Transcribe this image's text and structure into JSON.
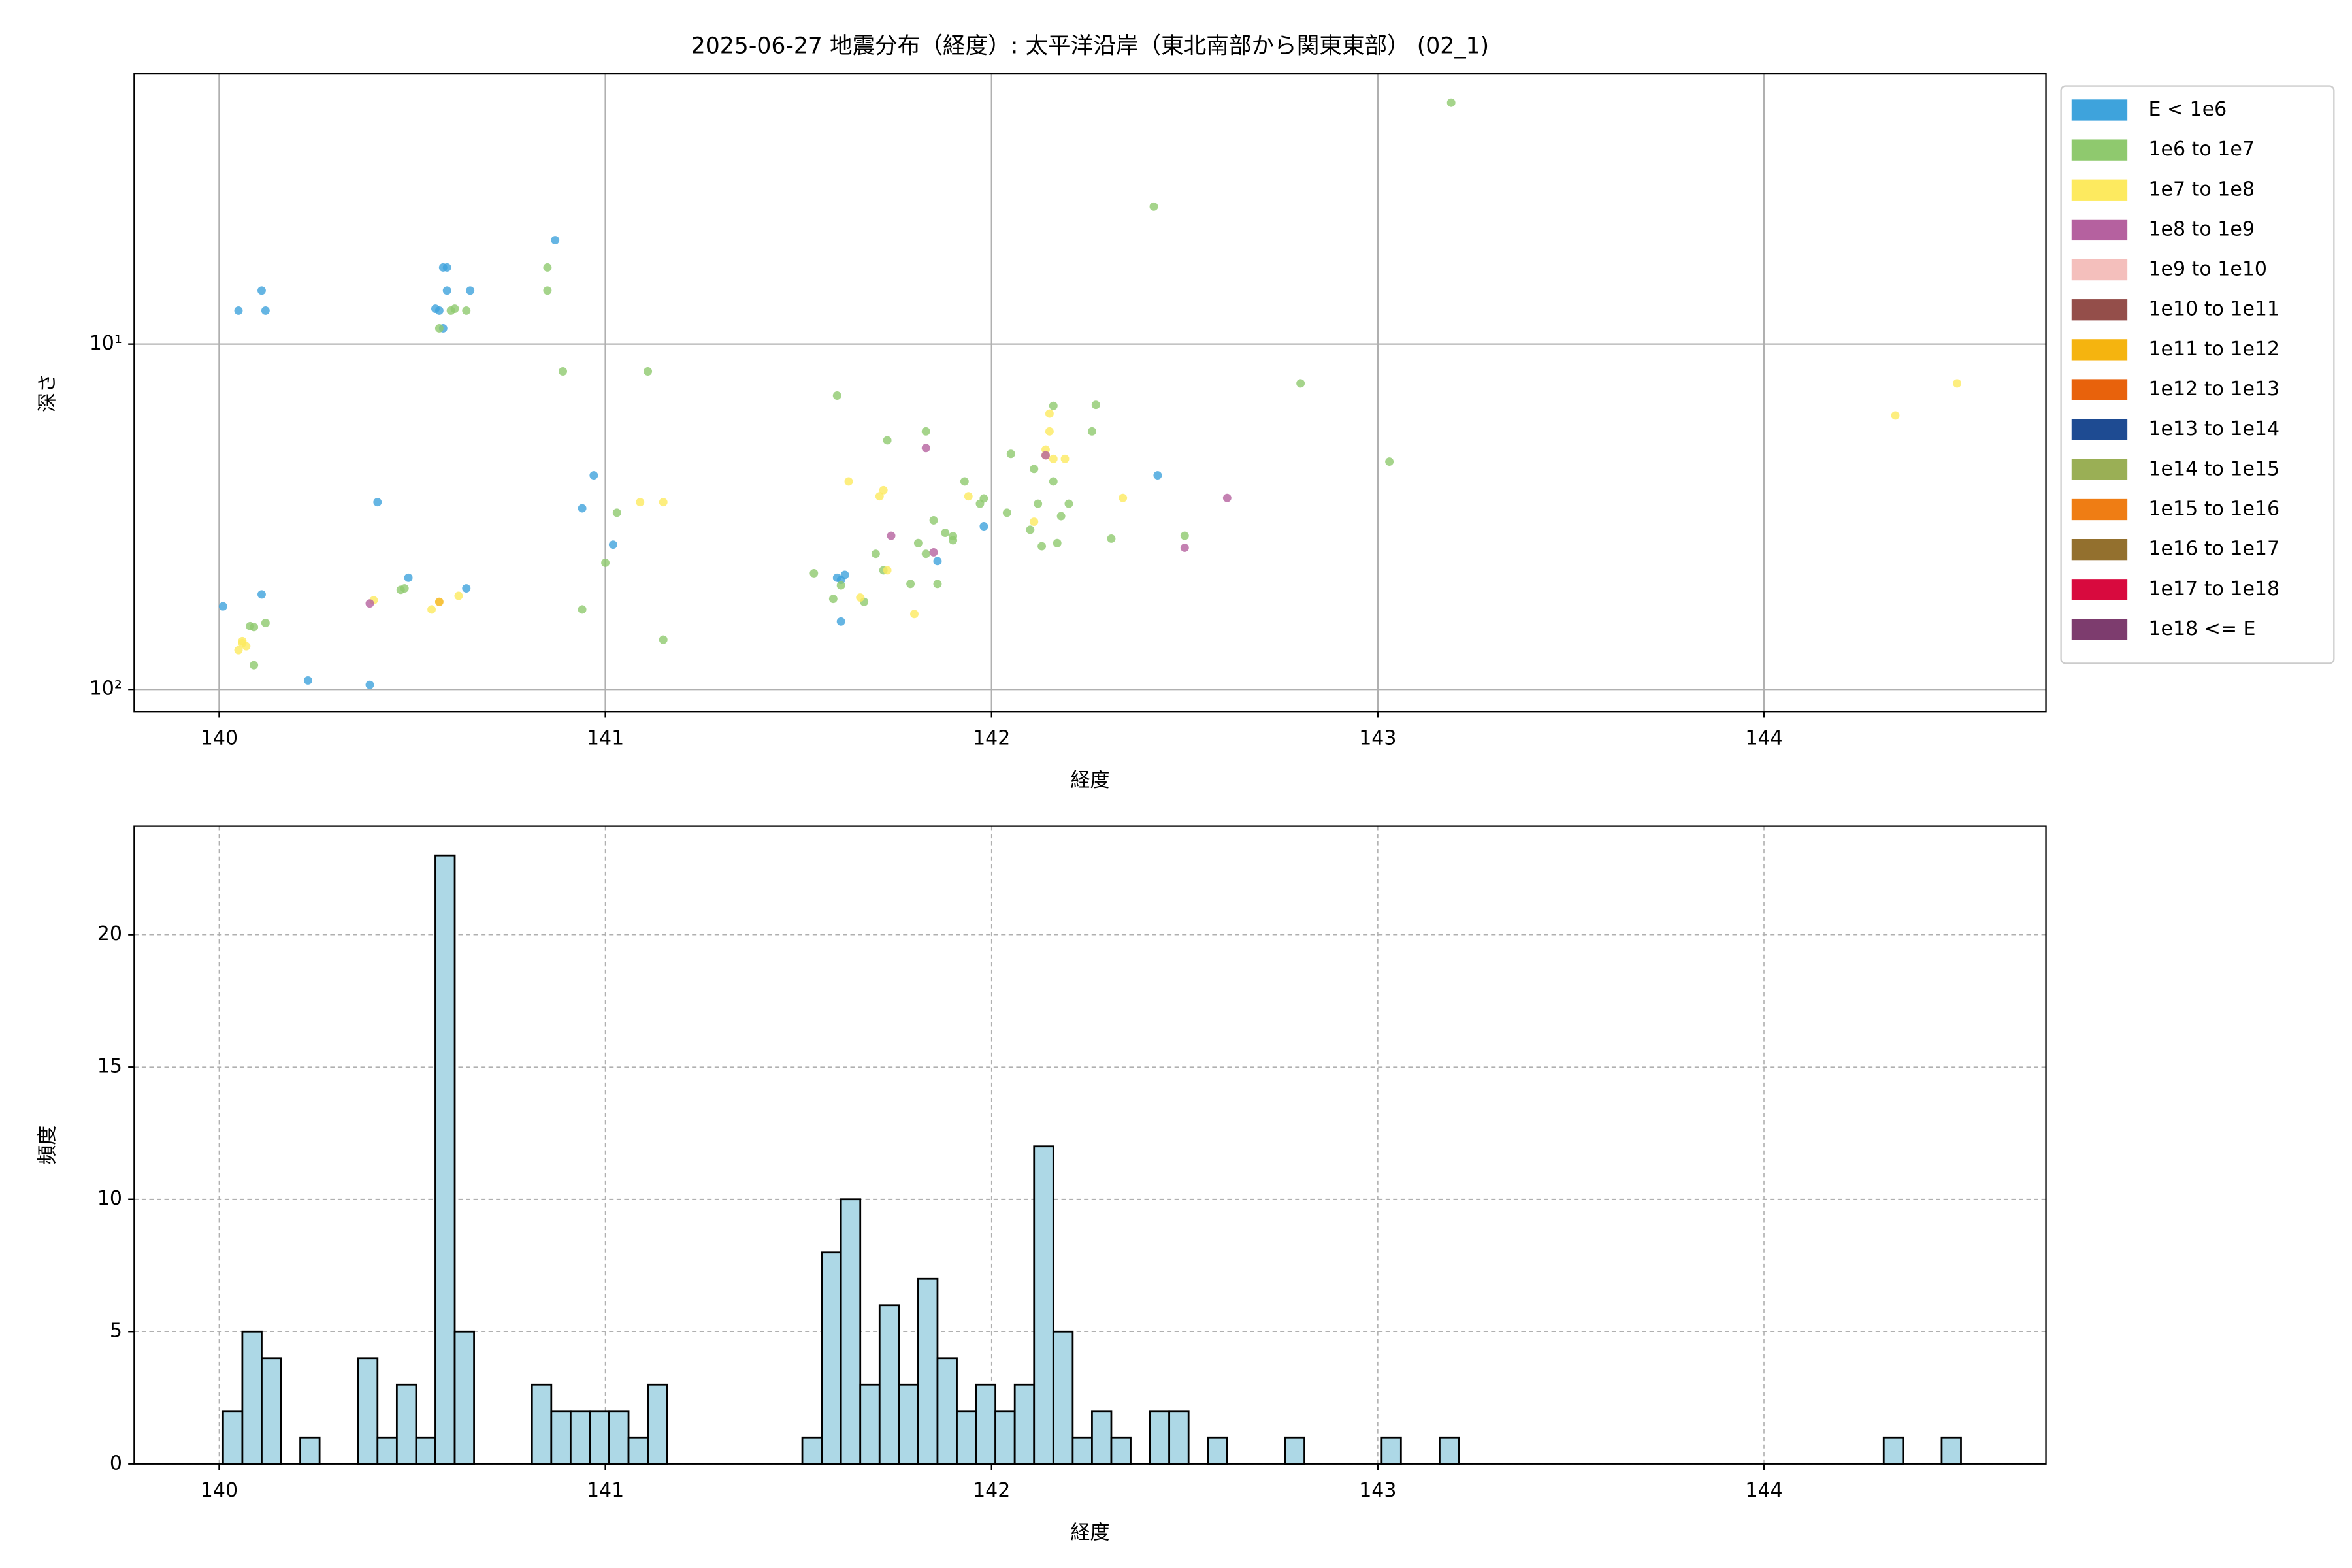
{
  "chart_data": [
    {
      "type": "scatter",
      "title": "2025-06-27 地震分布（経度）: 太平洋沿岸（東北南部から関東東部） (02_1)",
      "x_label": "経度",
      "y_label": "深さ",
      "xlim": [
        139.78,
        144.73
      ],
      "xticks": [
        140,
        141,
        142,
        143,
        144
      ],
      "ylim": [
        116,
        1.65
      ],
      "yscale": "log",
      "yticks": [
        {
          "value": 10,
          "label": "10¹"
        },
        {
          "value": 100,
          "label": "10²"
        }
      ],
      "grid": true,
      "legend": "outside-right",
      "series": [
        {
          "name": "E < 1e6",
          "color": "#3ea3dc",
          "x": [
            140.01,
            140.05,
            140.11,
            140.12,
            140.11,
            140.23,
            140.39,
            140.41,
            140.49,
            140.56,
            140.57,
            140.58,
            140.58,
            140.59,
            140.59,
            140.64,
            140.65,
            140.87,
            140.94,
            140.97,
            141.02,
            141.61,
            141.6,
            141.62,
            141.61,
            141.86,
            141.98,
            142.43
          ],
          "values": [
            57.5,
            8.0,
            7.0,
            8.0,
            53.1,
            94.2,
            97.0,
            28.7,
            47.5,
            7.9,
            8.0,
            9.0,
            6.0,
            6.0,
            7.0,
            51.0,
            7.0,
            5.0,
            29.9,
            24.0,
            38.1,
            63.6,
            47.5,
            46.6,
            48.2,
            42.5,
            33.7,
            24.0
          ]
        },
        {
          "name": "1e6 to 1e7",
          "color": "#8fc96e",
          "x": [
            140.08,
            140.09,
            140.09,
            140.12,
            140.47,
            140.48,
            140.57,
            140.6,
            140.61,
            140.64,
            140.85,
            140.85,
            140.89,
            140.94,
            141.0,
            141.03,
            141.11,
            141.15,
            141.54,
            141.6,
            141.59,
            141.61,
            141.67,
            141.7,
            141.72,
            141.73,
            141.79,
            141.81,
            141.83,
            141.83,
            141.85,
            141.86,
            141.88,
            141.9,
            141.9,
            141.93,
            141.97,
            141.98,
            142.04,
            142.05,
            142.1,
            142.11,
            142.12,
            142.13,
            142.16,
            142.16,
            142.17,
            142.18,
            142.2,
            142.26,
            142.27,
            142.31,
            142.42,
            142.5,
            142.8,
            143.03,
            143.19
          ],
          "values": [
            65.6,
            66.0,
            85.1,
            64.2,
            51.5,
            51.0,
            9.0,
            8.0,
            7.9,
            8.0,
            6.0,
            7.0,
            12.0,
            58.7,
            43.0,
            30.8,
            12.0,
            71.8,
            46.1,
            14.1,
            54.7,
            50.0,
            55.8,
            40.5,
            45.2,
            19.0,
            49.5,
            37.7,
            17.9,
            40.5,
            32.4,
            49.5,
            35.2,
            37.0,
            36.0,
            25.0,
            29.0,
            28.0,
            30.8,
            20.8,
            34.5,
            23.0,
            29.0,
            38.5,
            15.1,
            25.0,
            37.7,
            31.5,
            29.0,
            17.9,
            15.0,
            36.6,
            4.0,
            35.9,
            13.0,
            21.9,
            2.0
          ]
        },
        {
          "name": "1e7 to 1e8",
          "color": "#fdea5f",
          "x": [
            140.06,
            140.07,
            140.06,
            140.05,
            140.4,
            140.55,
            140.62,
            141.09,
            141.15,
            141.63,
            141.66,
            141.71,
            141.72,
            141.73,
            141.8,
            141.94,
            142.11,
            142.14,
            142.14,
            142.15,
            142.15,
            142.16,
            142.19,
            142.34,
            144.34,
            144.5
          ],
          "values": [
            72.5,
            75.0,
            73.5,
            77.0,
            55.2,
            58.7,
            53.6,
            28.7,
            28.7,
            25.0,
            54.2,
            27.6,
            26.5,
            45.2,
            60.5,
            27.6,
            32.7,
            20.2,
            21.0,
            15.9,
            17.9,
            21.5,
            21.5,
            27.9,
            16.1,
            13.0
          ]
        },
        {
          "name": "1e8 to 1e9",
          "color": "#b5619f",
          "x": [
            140.39,
            141.74,
            141.83,
            141.85,
            142.14,
            142.5,
            142.61
          ],
          "values": [
            56.4,
            35.9,
            20.0,
            40.1,
            21.0,
            38.9,
            27.9
          ]
        },
        {
          "name": "1e9 to 1e10",
          "color": "#f4bfbc",
          "x": [],
          "values": []
        },
        {
          "name": "1e10 to 1e11",
          "color": "#944e4a",
          "x": [],
          "values": []
        },
        {
          "name": "1e11 to 1e12",
          "color": "#f5b40f",
          "x": [
            140.57
          ],
          "values": [
            55.8
          ]
        },
        {
          "name": "1e12 to 1e13",
          "color": "#e8620c",
          "x": [],
          "values": []
        },
        {
          "name": "1e13 to 1e14",
          "color": "#1e4b92",
          "x": [],
          "values": []
        },
        {
          "name": "1e14 to 1e15",
          "color": "#9aaf55",
          "x": [],
          "values": []
        },
        {
          "name": "1e15 to 1e16",
          "color": "#ef7d14",
          "x": [],
          "values": []
        },
        {
          "name": "1e16 to 1e17",
          "color": "#93702e",
          "x": [],
          "values": []
        },
        {
          "name": "1e17 to 1e18",
          "color": "#d80a3e",
          "x": [],
          "values": []
        },
        {
          "name": "1e18 <= E",
          "color": "#7d3c6e",
          "x": [],
          "values": []
        }
      ]
    },
    {
      "type": "histogram",
      "x_label": "経度",
      "y_label": "頻度",
      "xlim": [
        139.78,
        144.73
      ],
      "xticks": [
        140,
        141,
        142,
        143,
        144
      ],
      "ylim": [
        0,
        24.1
      ],
      "yticks": [
        0,
        5,
        10,
        15,
        20
      ],
      "grid": "dashed",
      "color": "#add8e6",
      "edgecolor": "#000000",
      "bins": [
        140.01,
        140.06,
        140.11,
        140.16,
        140.21,
        140.26,
        140.31,
        140.36,
        140.41,
        140.46,
        140.51,
        140.56,
        140.61,
        140.66,
        140.71,
        140.76,
        140.81,
        140.86,
        140.91,
        140.96,
        141.01,
        141.06,
        141.11,
        141.16,
        141.21,
        141.26,
        141.31,
        141.36,
        141.41,
        141.46,
        141.51,
        141.56,
        141.61,
        141.66,
        141.71,
        141.76,
        141.81,
        141.86,
        141.91,
        141.96,
        142.01,
        142.06,
        142.11,
        142.16,
        142.21,
        142.26,
        142.31,
        142.36,
        142.41,
        142.46,
        142.51,
        142.56,
        142.61,
        142.66,
        142.71,
        142.76,
        142.81,
        142.86,
        142.91,
        142.96,
        143.01,
        143.06,
        143.11,
        143.16,
        143.21,
        143.26,
        143.31,
        143.36,
        143.41,
        143.46,
        143.51,
        143.56,
        143.61,
        143.66,
        143.71,
        143.76,
        143.81,
        143.86,
        143.91,
        143.96,
        144.01,
        144.06,
        144.11,
        144.16,
        144.21,
        144.26,
        144.31,
        144.36,
        144.41,
        144.46,
        144.51
      ],
      "values": [
        2,
        5,
        4,
        0,
        1,
        0,
        0,
        4,
        1,
        3,
        1,
        23,
        5,
        0,
        0,
        0,
        3,
        2,
        2,
        2,
        2,
        1,
        3,
        0,
        0,
        0,
        0,
        0,
        0,
        0,
        1,
        8,
        10,
        3,
        6,
        3,
        7,
        4,
        2,
        3,
        2,
        3,
        12,
        5,
        1,
        2,
        1,
        0,
        2,
        2,
        0,
        1,
        0,
        0,
        0,
        1,
        0,
        0,
        0,
        0,
        1,
        0,
        0,
        1,
        0,
        0,
        0,
        0,
        0,
        0,
        0,
        0,
        0,
        0,
        0,
        0,
        0,
        0,
        0,
        0,
        0,
        0,
        0,
        0,
        0,
        0,
        1,
        0,
        0,
        1
      ]
    }
  ]
}
